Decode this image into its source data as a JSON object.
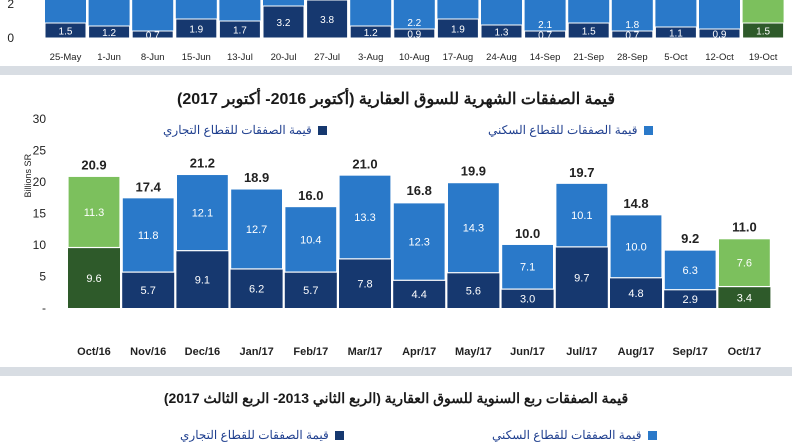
{
  "colors": {
    "residential": "#2a79c9",
    "commercial": "#16386f",
    "residential_latest": "#7cc05d",
    "commercial_latest": "#2e5a2a",
    "grid": "#d9d9d9",
    "text": "#222222"
  },
  "top_chart": {
    "yticks": [
      "2",
      "0"
    ],
    "categories": [
      "25-May",
      "1-Jun",
      "8-Jun",
      "15-Jun",
      "13-Jul",
      "20-Jul",
      "27-Jul",
      "3-Aug",
      "10-Aug",
      "17-Aug",
      "24-Aug",
      "14-Sep",
      "21-Sep",
      "28-Sep",
      "5-Oct",
      "12-Oct",
      "19-Oct"
    ],
    "commercial_labels": [
      "1.5",
      "1.2",
      "0.7",
      "1.9",
      "1.7",
      "3.2",
      "3.8",
      "1.2",
      "0.9",
      "1.9",
      "1.3",
      "0.7",
      "1.5",
      "0.7",
      "1.1",
      "0.9",
      "1.5"
    ],
    "residential_labels": [
      "",
      "",
      "",
      "",
      "",
      "",
      "",
      "",
      "2.2",
      "",
      "",
      "2.1",
      "",
      "1.8",
      "",
      "",
      ""
    ]
  },
  "chart_data": [
    {
      "type": "bar",
      "stacked": true,
      "title": "قيمة الصفقات الشهرية للسوق العقارية (أكتوبر 2016- أكتوبر 2017)",
      "ylabel": "Billions SR",
      "ylim": [
        0,
        30
      ],
      "yticks": [
        0,
        5,
        10,
        15,
        20,
        25,
        30
      ],
      "grid": false,
      "legend": "top",
      "categories": [
        "Oct/16",
        "Nov/16",
        "Dec/16",
        "Jan/17",
        "Feb/17",
        "Mar/17",
        "Apr/17",
        "May/17",
        "Jun/17",
        "Jul/17",
        "Aug/17",
        "Sep/17",
        "Oct/17"
      ],
      "series": [
        {
          "name": "قيمة الصفقات للقطاع التجاري",
          "values": [
            9.6,
            5.7,
            9.1,
            6.2,
            5.7,
            7.8,
            4.4,
            5.6,
            3.0,
            9.7,
            4.8,
            2.9,
            3.4
          ]
        },
        {
          "name": "قيمة الصفقات للقطاع السكني",
          "values": [
            11.3,
            11.8,
            12.1,
            12.7,
            10.4,
            13.3,
            12.3,
            14.3,
            7.1,
            10.1,
            10.0,
            6.3,
            7.6
          ]
        }
      ],
      "totals": [
        20.9,
        17.4,
        21.2,
        18.9,
        16.0,
        21.0,
        16.8,
        19.9,
        10.0,
        19.7,
        14.8,
        9.2,
        11.0
      ]
    }
  ],
  "main_legend": {
    "residential": "قيمة الصفقات للقطاع السكني",
    "commercial": "قيمة الصفقات للقطاع التجاري"
  },
  "bottom_chart": {
    "title": "قيمة الصفقات ربع السنوية للسوق العقارية (الربع الثاني 2013- الربع الثالث 2017)",
    "legend_residential": "قيمة الصفقات للقطاع السكني",
    "legend_commercial": "قيمة الصفقات للقطاع التجاري"
  }
}
